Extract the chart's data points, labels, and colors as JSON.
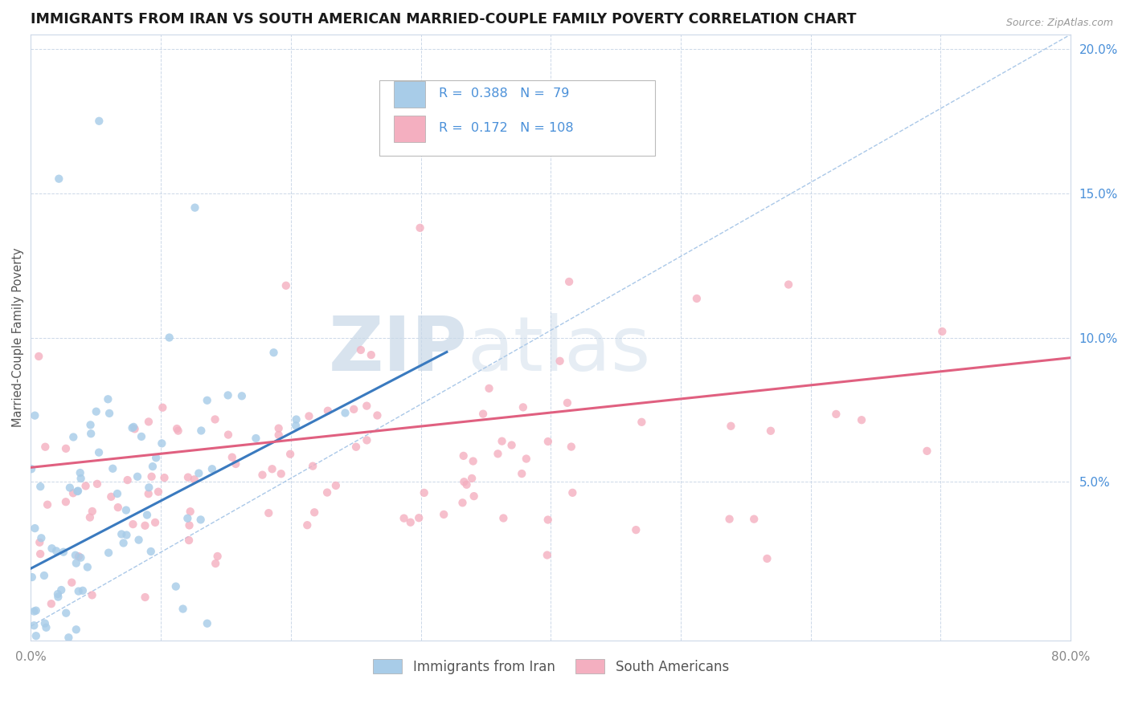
{
  "title": "IMMIGRANTS FROM IRAN VS SOUTH AMERICAN MARRIED-COUPLE FAMILY POVERTY CORRELATION CHART",
  "source": "Source: ZipAtlas.com",
  "ylabel": "Married-Couple Family Poverty",
  "xlim": [
    0.0,
    0.8
  ],
  "ylim": [
    -0.005,
    0.205
  ],
  "legend_labels": [
    "Immigrants from Iran",
    "South Americans"
  ],
  "iran_color": "#a8cce8",
  "south_color": "#f4afc0",
  "iran_line_color": "#3a7abf",
  "south_line_color": "#e06080",
  "iran_R": 0.388,
  "iran_N": 79,
  "south_R": 0.172,
  "south_N": 108,
  "diagonal_color": "#aac8e8",
  "watermark_zip": "ZIP",
  "watermark_atlas": "atlas",
  "background_color": "#ffffff",
  "grid_color": "#ccd8e8",
  "title_fontsize": 12.5,
  "tick_label_color_right": "#4a90d9",
  "tick_color_x": "#888888"
}
